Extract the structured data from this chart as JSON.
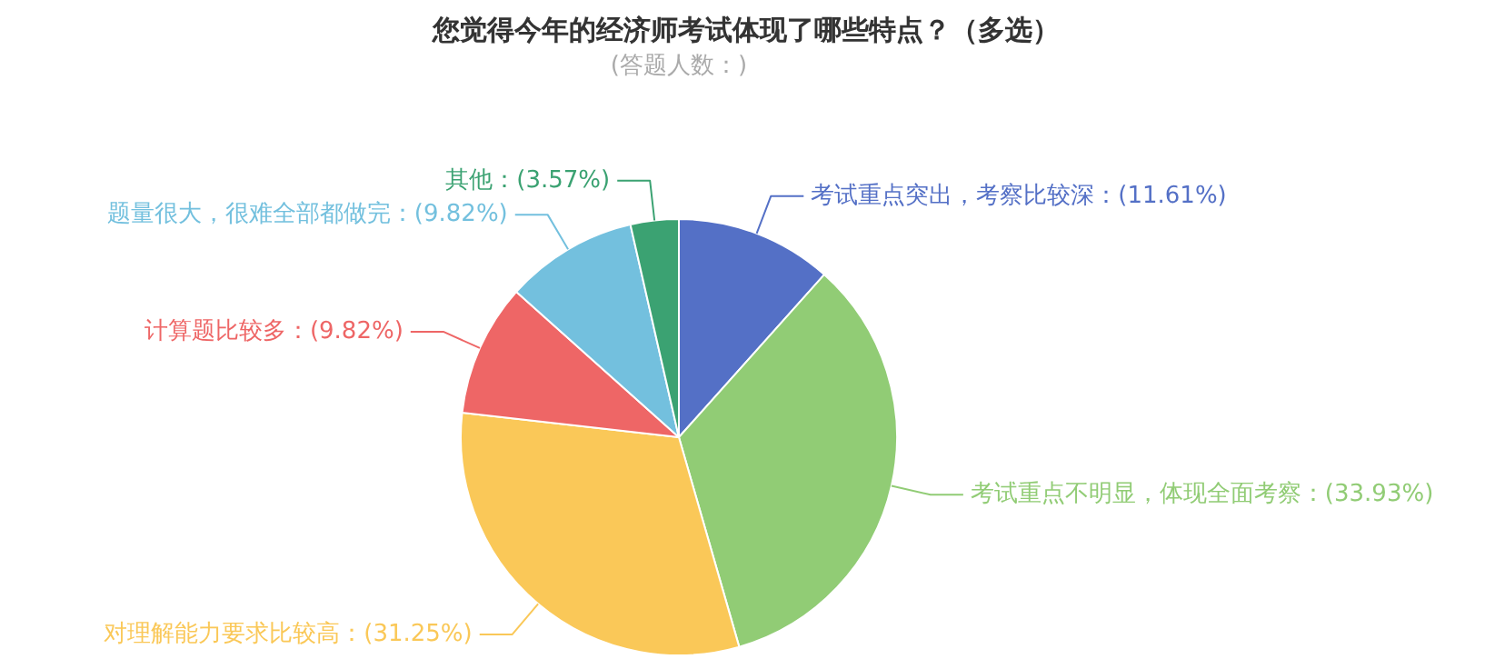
{
  "chart_data": {
    "type": "pie",
    "title": "您觉得今年的经济师考试体现了哪些特点？（多选）",
    "subtitle": "(答题人数：)",
    "categories": [
      "考试重点突出，考察比较深",
      "考试重点不明显，体现全面考察",
      "对理解能力要求比较高",
      "计算题比较多",
      "题量很大，很难全部都做完",
      "其他"
    ],
    "values": [
      11.61,
      33.93,
      31.25,
      9.82,
      9.82,
      3.57
    ],
    "value_labels": [
      "(11.61%)",
      "(33.93%)",
      "(31.25%)",
      "(9.82%)",
      "(9.82%)",
      "(3.57%)"
    ],
    "colors": [
      "#5470c6",
      "#91cc75",
      "#fac858",
      "#ee6666",
      "#73c0de",
      "#3ba272"
    ]
  }
}
